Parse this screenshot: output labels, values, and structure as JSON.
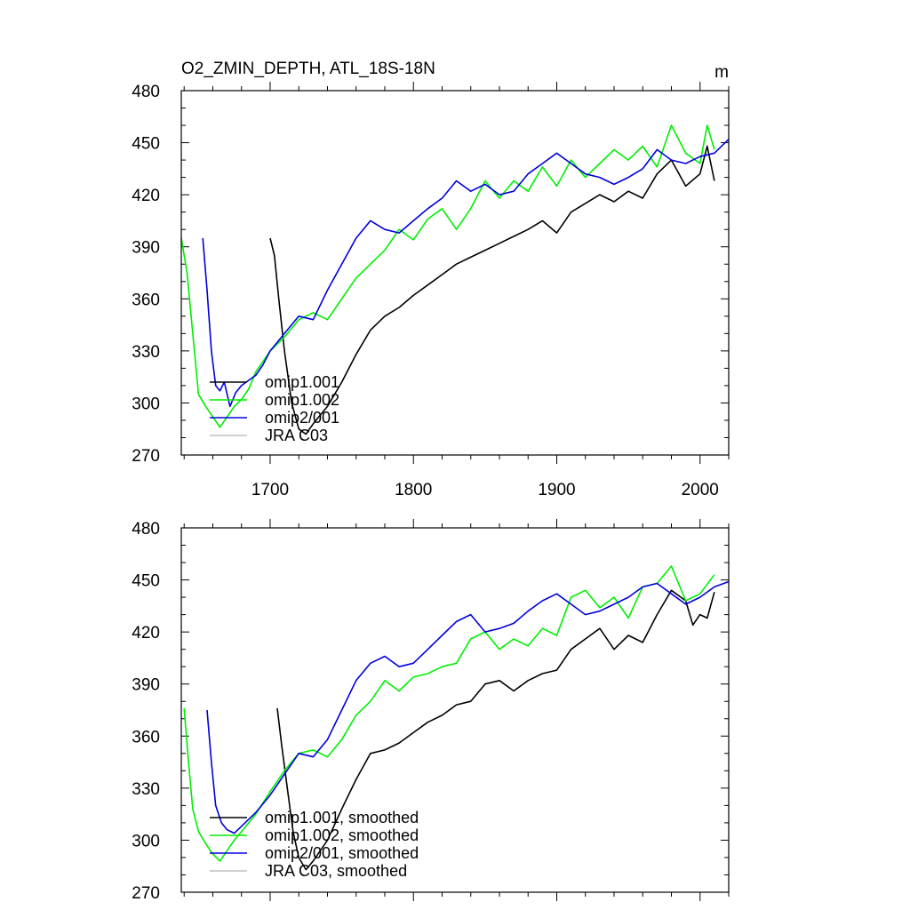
{
  "title": "O2_ZMIN_DEPTH, ATL_18S-18N",
  "units": "m",
  "colors": {
    "omip1_001": "#000000",
    "omip1_002": "#00ee00",
    "omip2_001": "#0000dd",
    "jra_c03": "#c0c0c0"
  },
  "chart_data": [
    {
      "type": "line",
      "panel": "top",
      "title": "O2_ZMIN_DEPTH, ATL_18S-18N",
      "units_label": "m",
      "xlim": [
        1638,
        2020
      ],
      "ylim": [
        270,
        480
      ],
      "x_ticks": [
        1700,
        1800,
        1900,
        2000
      ],
      "x_tick_labels": [
        "1700",
        "1800",
        "1900",
        "2000"
      ],
      "y_ticks": [
        270,
        300,
        330,
        360,
        390,
        420,
        450,
        480
      ],
      "y_tick_labels": [
        "270",
        "300",
        "330",
        "360",
        "390",
        "420",
        "450",
        "480"
      ],
      "legend_position": "bottom-left",
      "legend": [
        "omip1.001",
        "omip1.002",
        "omip2/001",
        "JRA C03"
      ],
      "series": [
        {
          "name": "omip1.001",
          "color_key": "omip1_001",
          "x": [
            1700,
            1703,
            1706,
            1710,
            1715,
            1720,
            1725,
            1730,
            1740,
            1750,
            1760,
            1770,
            1780,
            1790,
            1800,
            1810,
            1820,
            1830,
            1840,
            1850,
            1860,
            1870,
            1880,
            1890,
            1900,
            1910,
            1920,
            1930,
            1940,
            1950,
            1960,
            1970,
            1980,
            1990,
            2000,
            2005,
            2010
          ],
          "y": [
            395,
            385,
            360,
            330,
            300,
            285,
            282,
            288,
            298,
            312,
            328,
            342,
            350,
            355,
            362,
            368,
            374,
            380,
            384,
            388,
            392,
            396,
            400,
            405,
            398,
            410,
            415,
            420,
            416,
            422,
            418,
            432,
            440,
            425,
            432,
            448,
            428
          ]
        },
        {
          "name": "omip1.002",
          "color_key": "omip1_002",
          "x": [
            1638,
            1642,
            1646,
            1650,
            1655,
            1660,
            1665,
            1670,
            1675,
            1680,
            1685,
            1690,
            1700,
            1710,
            1720,
            1730,
            1740,
            1750,
            1760,
            1770,
            1780,
            1790,
            1800,
            1810,
            1820,
            1830,
            1840,
            1850,
            1860,
            1870,
            1880,
            1890,
            1900,
            1910,
            1920,
            1930,
            1940,
            1950,
            1960,
            1970,
            1980,
            1990,
            2000,
            2005,
            2010
          ],
          "y": [
            395,
            375,
            340,
            305,
            298,
            292,
            286,
            292,
            298,
            302,
            308,
            318,
            330,
            338,
            348,
            352,
            348,
            360,
            372,
            380,
            388,
            400,
            394,
            406,
            412,
            400,
            412,
            428,
            418,
            428,
            422,
            436,
            425,
            440,
            430,
            438,
            446,
            440,
            448,
            436,
            460,
            444,
            438,
            460,
            446
          ]
        },
        {
          "name": "omip2/001",
          "color_key": "omip2_001",
          "x": [
            1653,
            1656,
            1659,
            1662,
            1665,
            1668,
            1672,
            1676,
            1680,
            1685,
            1690,
            1695,
            1700,
            1710,
            1720,
            1730,
            1740,
            1750,
            1760,
            1770,
            1780,
            1790,
            1800,
            1810,
            1820,
            1830,
            1840,
            1850,
            1860,
            1870,
            1880,
            1890,
            1900,
            1910,
            1920,
            1930,
            1940,
            1950,
            1960,
            1970,
            1980,
            1990,
            2000,
            2010,
            2020
          ],
          "y": [
            395,
            365,
            330,
            310,
            307,
            312,
            298,
            306,
            310,
            313,
            316,
            322,
            330,
            340,
            350,
            348,
            365,
            380,
            395,
            405,
            400,
            398,
            405,
            412,
            418,
            428,
            422,
            426,
            420,
            422,
            432,
            438,
            444,
            438,
            432,
            430,
            426,
            430,
            435,
            446,
            440,
            438,
            442,
            444,
            452
          ]
        },
        {
          "name": "JRA C03",
          "color_key": "jra_c03",
          "x": [],
          "y": []
        }
      ]
    },
    {
      "type": "line",
      "panel": "bottom",
      "xlim": [
        1638,
        2020
      ],
      "ylim": [
        270,
        480
      ],
      "y_ticks": [
        270,
        300,
        330,
        360,
        390,
        420,
        450,
        480
      ],
      "y_tick_labels": [
        "270",
        "300",
        "330",
        "360",
        "390",
        "420",
        "450",
        "480"
      ],
      "legend_position": "bottom-left",
      "legend": [
        "omip1.001, smoothed",
        "omip1.002, smoothed",
        "omip2/001, smoothed",
        "JRA C03, smoothed"
      ],
      "series": [
        {
          "name": "omip1.001, smoothed",
          "color_key": "omip1_001",
          "x": [
            1705,
            1708,
            1712,
            1716,
            1720,
            1725,
            1730,
            1740,
            1750,
            1760,
            1770,
            1780,
            1790,
            1800,
            1810,
            1820,
            1830,
            1840,
            1850,
            1860,
            1870,
            1880,
            1890,
            1900,
            1910,
            1920,
            1930,
            1940,
            1950,
            1960,
            1970,
            1980,
            1990,
            1995,
            2000,
            2005,
            2010
          ],
          "y": [
            376,
            355,
            330,
            305,
            290,
            283,
            288,
            300,
            318,
            335,
            350,
            352,
            356,
            362,
            368,
            372,
            378,
            380,
            390,
            392,
            386,
            392,
            396,
            398,
            410,
            416,
            422,
            410,
            418,
            414,
            430,
            444,
            438,
            424,
            430,
            428,
            443
          ]
        },
        {
          "name": "omip1.002, smoothed",
          "color_key": "omip1_002",
          "x": [
            1640,
            1643,
            1646,
            1650,
            1655,
            1660,
            1665,
            1670,
            1675,
            1680,
            1690,
            1700,
            1710,
            1720,
            1730,
            1740,
            1750,
            1760,
            1770,
            1780,
            1790,
            1800,
            1810,
            1820,
            1830,
            1840,
            1850,
            1860,
            1870,
            1880,
            1890,
            1900,
            1910,
            1920,
            1930,
            1940,
            1950,
            1960,
            1970,
            1980,
            1990,
            2000,
            2010
          ],
          "y": [
            376,
            345,
            318,
            305,
            298,
            292,
            288,
            294,
            300,
            305,
            315,
            328,
            340,
            350,
            352,
            348,
            358,
            372,
            380,
            392,
            386,
            394,
            396,
            400,
            402,
            416,
            420,
            410,
            416,
            412,
            422,
            418,
            440,
            444,
            434,
            440,
            428,
            446,
            448,
            458,
            438,
            442,
            453
          ]
        },
        {
          "name": "omip2/001, smoothed",
          "color_key": "omip2_001",
          "x": [
            1656,
            1659,
            1662,
            1666,
            1670,
            1675,
            1680,
            1690,
            1700,
            1710,
            1720,
            1730,
            1740,
            1750,
            1760,
            1770,
            1780,
            1790,
            1800,
            1810,
            1820,
            1830,
            1840,
            1850,
            1860,
            1870,
            1880,
            1890,
            1900,
            1910,
            1920,
            1930,
            1940,
            1950,
            1960,
            1970,
            1980,
            1990,
            2000,
            2010,
            2020
          ],
          "y": [
            375,
            345,
            320,
            310,
            306,
            304,
            308,
            316,
            326,
            338,
            350,
            348,
            358,
            375,
            392,
            402,
            406,
            400,
            402,
            410,
            418,
            426,
            430,
            420,
            422,
            425,
            432,
            438,
            442,
            436,
            430,
            432,
            436,
            440,
            446,
            448,
            442,
            436,
            440,
            446,
            449
          ]
        },
        {
          "name": "JRA C03, smoothed",
          "color_key": "jra_c03",
          "x": [],
          "y": []
        }
      ]
    }
  ]
}
